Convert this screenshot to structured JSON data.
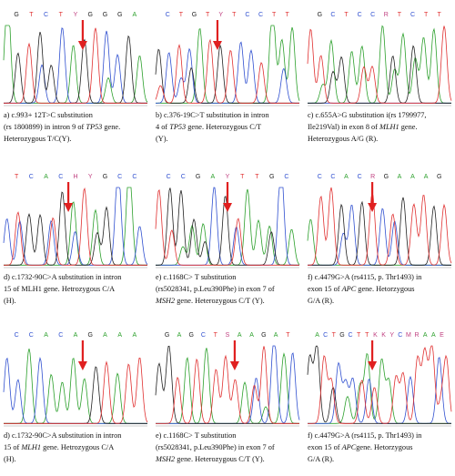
{
  "panels": [
    {
      "sequence": [
        "G",
        "T",
        "C",
        "T",
        "Y",
        "G",
        "G",
        "G",
        "A"
      ],
      "caption": [
        [
          "a) c.993+ 12T>C substitution"
        ],
        [
          "(rs 1800899) in intron 9 of ",
          {
            "text": "TP53",
            "italic": true
          },
          " gene."
        ],
        [
          "Heterozygous T/C(Y)."
        ]
      ]
    },
    {
      "sequence": [
        "C",
        "T",
        "G",
        "T",
        "Y",
        "T",
        "C",
        "C",
        "T",
        "T"
      ],
      "caption": [
        [
          "b) c.376-19C>T substitution in intron"
        ],
        [
          "4 of ",
          {
            "text": "TP53",
            "italic": true
          },
          " gene. Heterozygous C/T"
        ],
        [
          "(Y)."
        ]
      ]
    },
    {
      "sequence": [
        "G",
        "C",
        "T",
        "C",
        "C",
        "R",
        "T",
        "C",
        "T",
        "T"
      ],
      "caption": [
        [
          "c) c.655A>G substitution i(rs 1799977,"
        ],
        [
          "Ile219Val) in exon 8 of ",
          {
            "text": "MLH1",
            "italic": true
          },
          " gene."
        ],
        [
          "Heterozygous A/G (R)."
        ]
      ]
    },
    {
      "sequence": [
        "T",
        "C",
        "A",
        "C",
        "H",
        "Y",
        "G",
        "C",
        "C"
      ],
      "caption": [
        [
          "d) c.1732-90C>A substitution in intron"
        ],
        [
          "15 of MLH1 gene. Hetrozygous C/A"
        ],
        [
          "(H)."
        ]
      ]
    },
    {
      "sequence": [
        "C",
        "C",
        "G",
        "A",
        "Y",
        "T",
        "T",
        "G",
        "C"
      ],
      "caption": [
        [
          "e) c.1168C> T substitution"
        ],
        [
          "(rs5028341, p.Leu390Phe) in exon 7 of"
        ],
        [
          {
            "text": "MSH2",
            "italic": true
          },
          " gene. Heterozygous C/T (Y)."
        ]
      ]
    },
    {
      "sequence": [
        "C",
        "C",
        "A",
        "C",
        "R",
        "G",
        "A",
        "A",
        "A",
        "G"
      ],
      "caption": [
        [
          "f) c.4479G>A (rs4115, p. Thr1493) in"
        ],
        [
          "exon 15 of ",
          {
            "text": "APC",
            "italic": true
          },
          " gene. Hetorzygous"
        ],
        [
          "G/A (R)."
        ]
      ]
    },
    {
      "sequence": [
        "C",
        "C",
        "A",
        "C",
        "A",
        "G",
        "A",
        "A",
        "A"
      ],
      "caption": [
        [
          "d) c.1732-90C>A substitution in intron"
        ],
        [
          "15 of ",
          {
            "text": "MLH1",
            "italic": true
          },
          " gene. Hetrozygous C/A"
        ],
        [
          "(H)."
        ]
      ]
    },
    {
      "sequence": [
        "G",
        "A",
        "G",
        "C",
        "T",
        "S",
        "A",
        "A",
        "G",
        "A",
        "T"
      ],
      "caption": [
        [
          "e) c.1168C> T substitution"
        ],
        [
          "(rs5028341, p.Leu390Phe) in exon 7 of"
        ],
        [
          {
            "text": "MSH2",
            "italic": true
          },
          " gene. Heterozygous C/T (Y)."
        ]
      ]
    },
    {
      "sequence": [
        "A",
        "C",
        "T",
        "G",
        "C",
        "T",
        "T",
        "K",
        "K",
        "Y",
        "C",
        "M",
        "R",
        "A",
        "A",
        "E"
      ],
      "caption": [
        [
          "f) c.4479G>A (rs4115, p. Thr1493) in"
        ],
        [
          "exon 15 of ",
          {
            "text": "APC",
            "italic": true
          },
          "gene. Hetorzygous"
        ],
        [
          "G/A (R)."
        ]
      ]
    }
  ]
}
